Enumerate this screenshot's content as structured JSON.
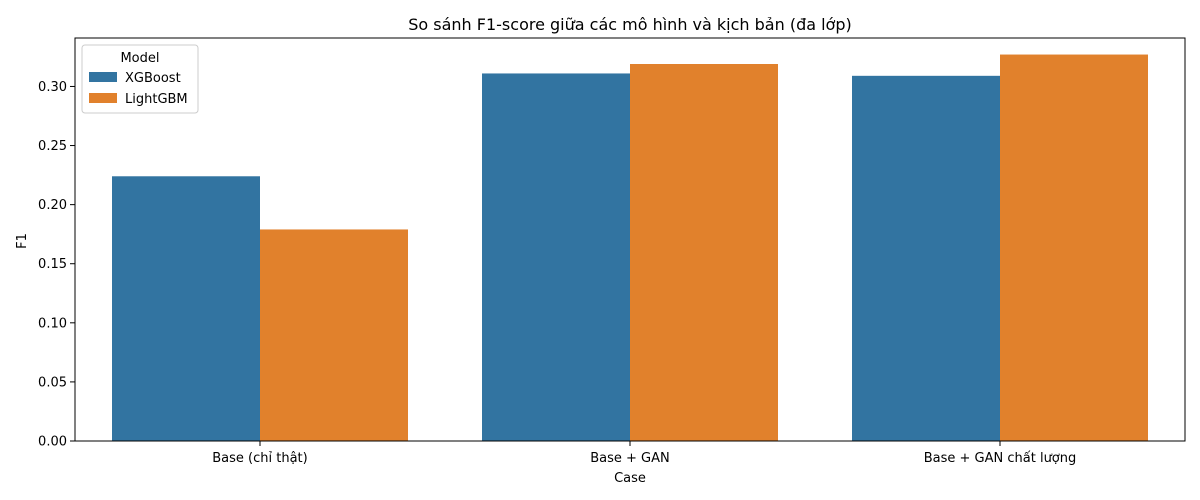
{
  "chart_data": {
    "type": "bar",
    "title": "So sánh F1-score giữa các mô hình và kịch bản (đa lớp)",
    "xlabel": "Case",
    "ylabel": "F1",
    "categories": [
      "Base (chỉ thật)",
      "Base + GAN",
      "Base + GAN chất lượng"
    ],
    "series": [
      {
        "name": "XGBoost",
        "values": [
          0.224,
          0.311,
          0.309
        ]
      },
      {
        "name": "LightGBM",
        "values": [
          0.179,
          0.319,
          0.327
        ]
      }
    ],
    "ylim": [
      0,
      0.341
    ],
    "yticks": [
      0.0,
      0.05,
      0.1,
      0.15,
      0.2,
      0.25,
      0.3
    ],
    "ytick_labels": [
      "0.00",
      "0.05",
      "0.10",
      "0.15",
      "0.20",
      "0.25",
      "0.30"
    ],
    "grid": false,
    "legend": {
      "title": "Model",
      "position": "top-left"
    },
    "colors": {
      "XGBoost": "#3274a1",
      "LightGBM": "#e1812c"
    }
  }
}
